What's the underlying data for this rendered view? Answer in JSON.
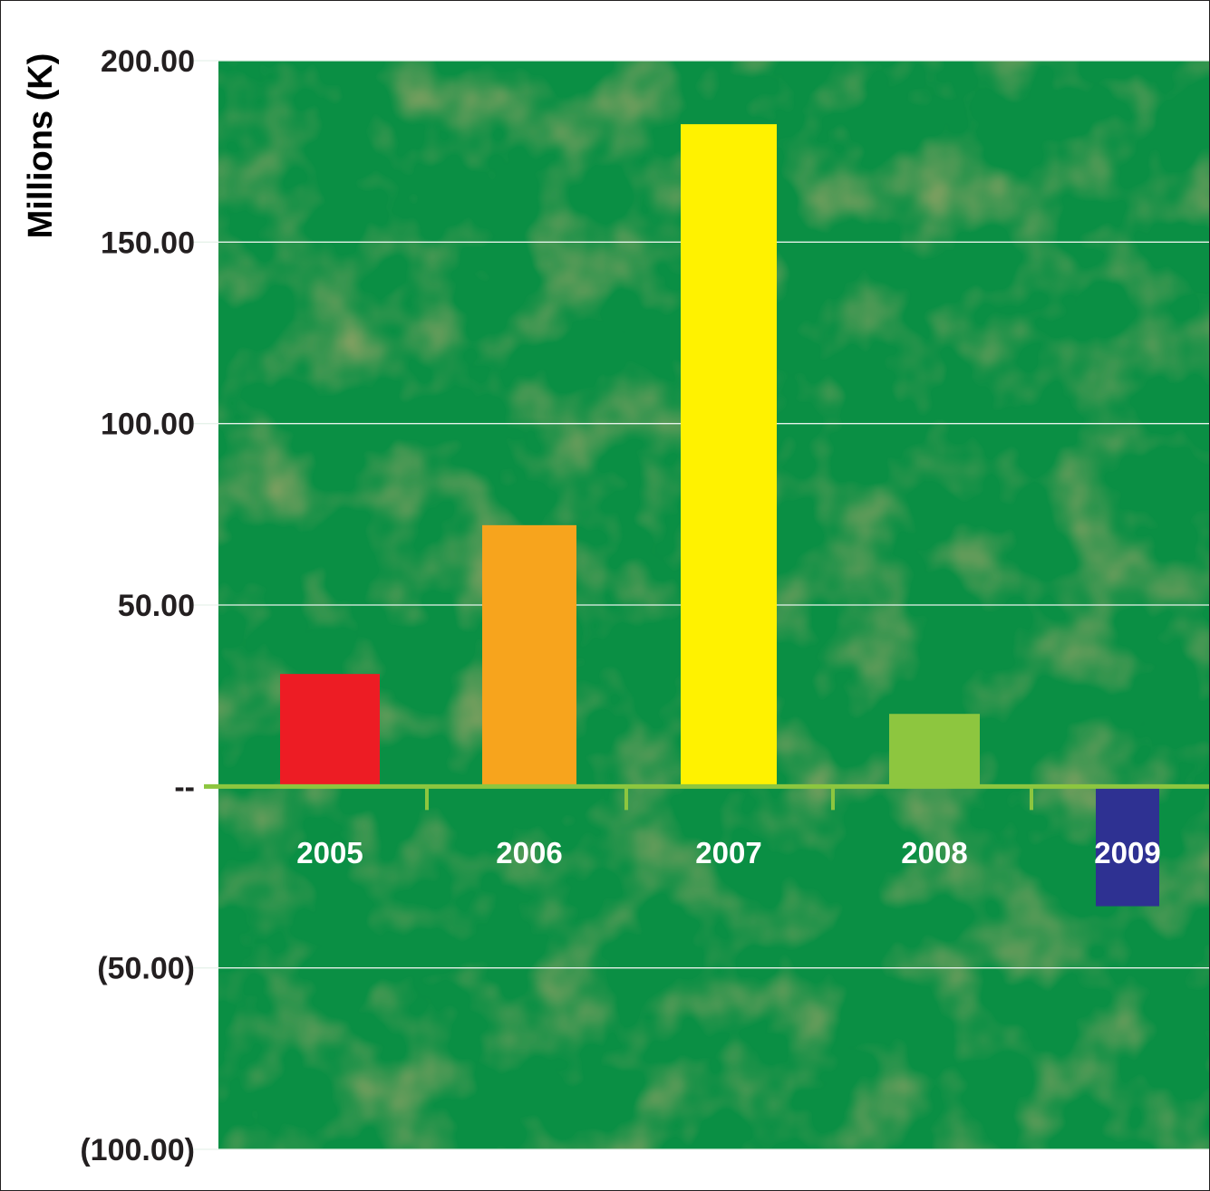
{
  "chart_data": {
    "type": "bar",
    "title": "",
    "xlabel": "",
    "ylabel": "Millions (K)",
    "categories": [
      "2005",
      "2006",
      "2007",
      "2008",
      "2009"
    ],
    "values": [
      31,
      72,
      182.5,
      20,
      -33
    ],
    "bar_colors": [
      "#ed1c24",
      "#f7a41d",
      "#fff200",
      "#8dc63f",
      "#2e3192"
    ],
    "ylim": [
      -100,
      200
    ],
    "yticks": [
      200,
      150,
      100,
      50,
      0,
      -50,
      -100
    ],
    "ytick_labels": [
      "200.00",
      "150.00",
      "100.00",
      "50.00",
      "--",
      "(50.00)",
      "(100.00)"
    ],
    "grid": true,
    "legend": "none",
    "background_color": "#0a8f44",
    "gridline_color": "#e6f2ea",
    "baseline_color": "#8dc63f"
  }
}
